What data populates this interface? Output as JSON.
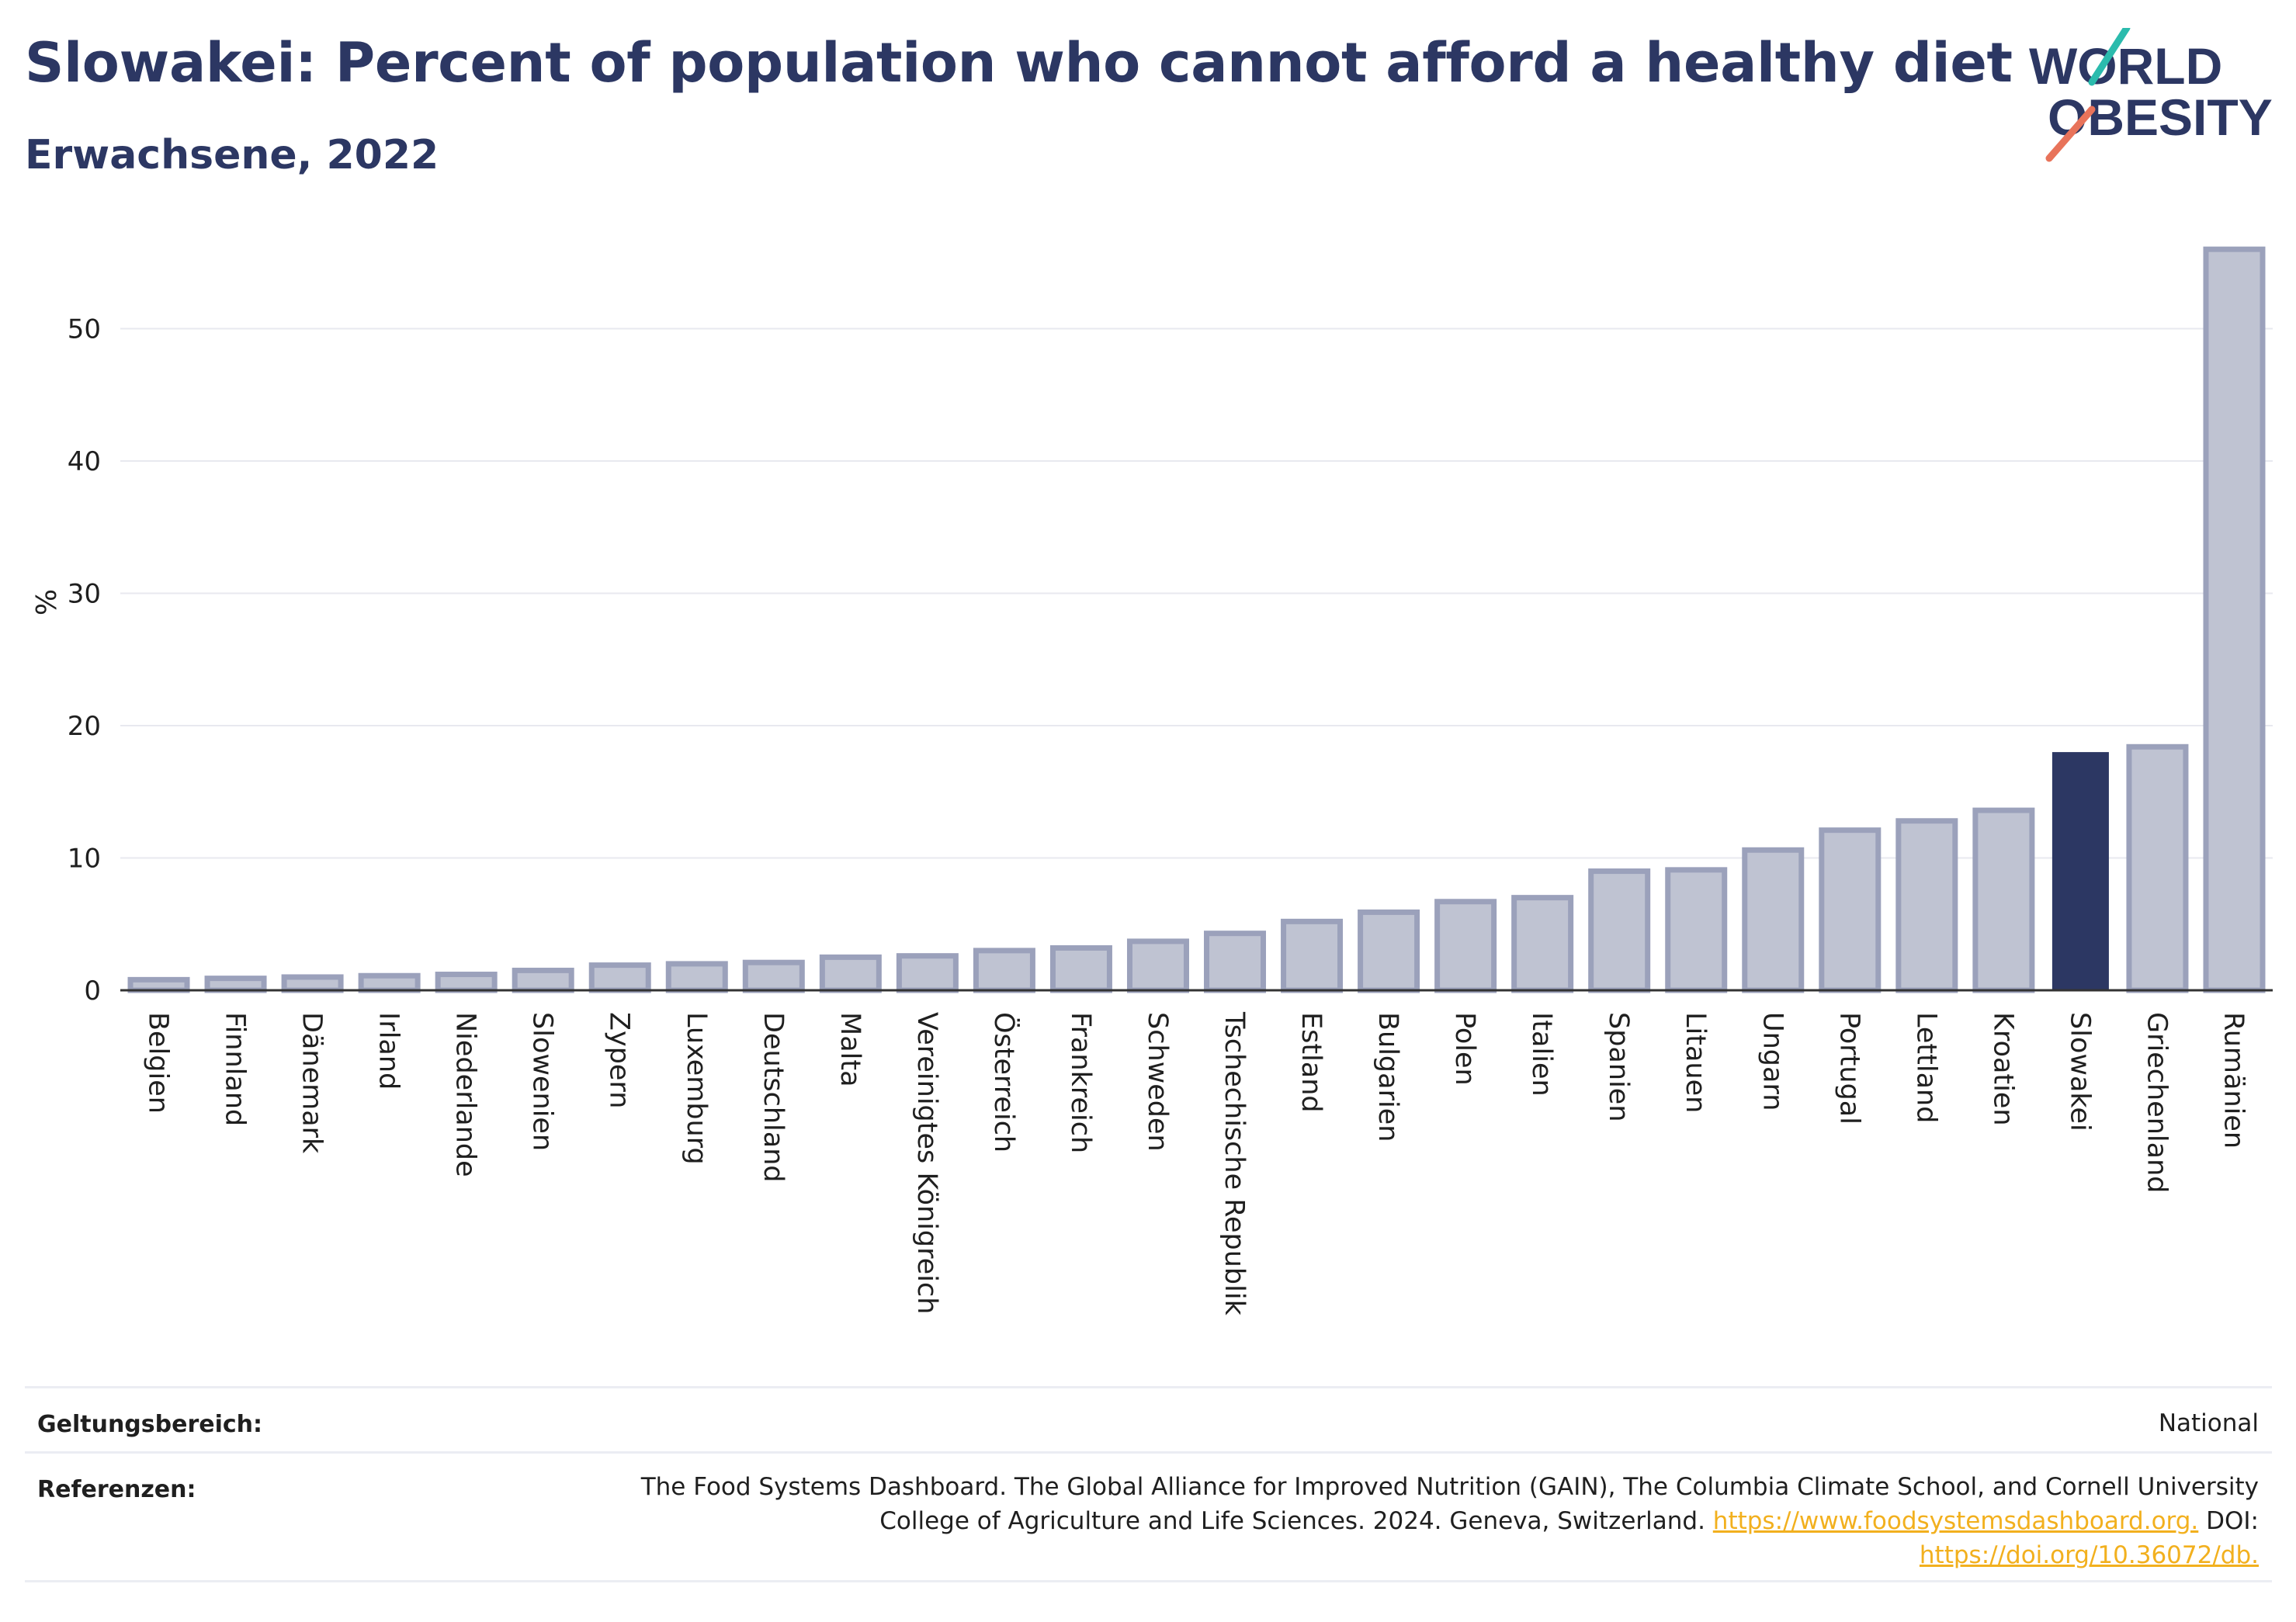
{
  "header": {
    "title": "Slowakei: Percent of population who cannot afford a healthy diet",
    "subtitle": "Erwachsene, 2022"
  },
  "logo": {
    "line1": "WORLD",
    "line2": "OBESITY"
  },
  "colors": {
    "bar_fill": "#bfc3d2",
    "bar_stroke": "#9ba1bb",
    "highlight": "#2c3763",
    "grid": "#e8e9ef",
    "text": "#1f1f1f",
    "logo_teal": "#2bbbad",
    "logo_coral": "#e8735a",
    "link": "#f2b01e"
  },
  "chart_data": {
    "type": "bar",
    "ylabel": "%",
    "ylim": [
      0,
      57
    ],
    "yticks": [
      0,
      10,
      20,
      30,
      40,
      50
    ],
    "grid": true,
    "highlight": "Slowakei",
    "categories": [
      "Belgien",
      "Finnland",
      "Dänemark",
      "Irland",
      "Niederlande",
      "Slowenien",
      "Zypern",
      "Luxemburg",
      "Deutschland",
      "Malta",
      "Vereinigtes Königreich",
      "Österreich",
      "Frankreich",
      "Schweden",
      "Tschechische Republik",
      "Estland",
      "Bulgarien",
      "Polen",
      "Italien",
      "Spanien",
      "Litauen",
      "Ungarn",
      "Portugal",
      "Lettland",
      "Kroatien",
      "Slowakei",
      "Griechenland",
      "Rumänien"
    ],
    "values": [
      0.8,
      0.9,
      1.0,
      1.1,
      1.2,
      1.5,
      1.9,
      2.0,
      2.1,
      2.5,
      2.6,
      3.0,
      3.2,
      3.7,
      4.3,
      5.2,
      5.9,
      6.7,
      7.0,
      9.0,
      9.1,
      10.6,
      12.1,
      12.8,
      13.6,
      18.0,
      18.4,
      56.0
    ]
  },
  "footer": {
    "scope_label": "Geltungsbereich:",
    "scope_value": "National",
    "refs_label": "Referenzen:",
    "refs_line1": "The Food Systems Dashboard. The Global Alliance for Improved Nutrition (GAIN), The Columbia Climate School, and Cornell University",
    "refs_line2_text": "College of Agriculture and Life Sciences. 2024. Geneva, Switzerland.",
    "refs_link1": "https://www.foodsystemsdashboard.org.",
    "refs_doi_label": "DOI:",
    "refs_link2": "https://doi.org/10.36072/db."
  }
}
